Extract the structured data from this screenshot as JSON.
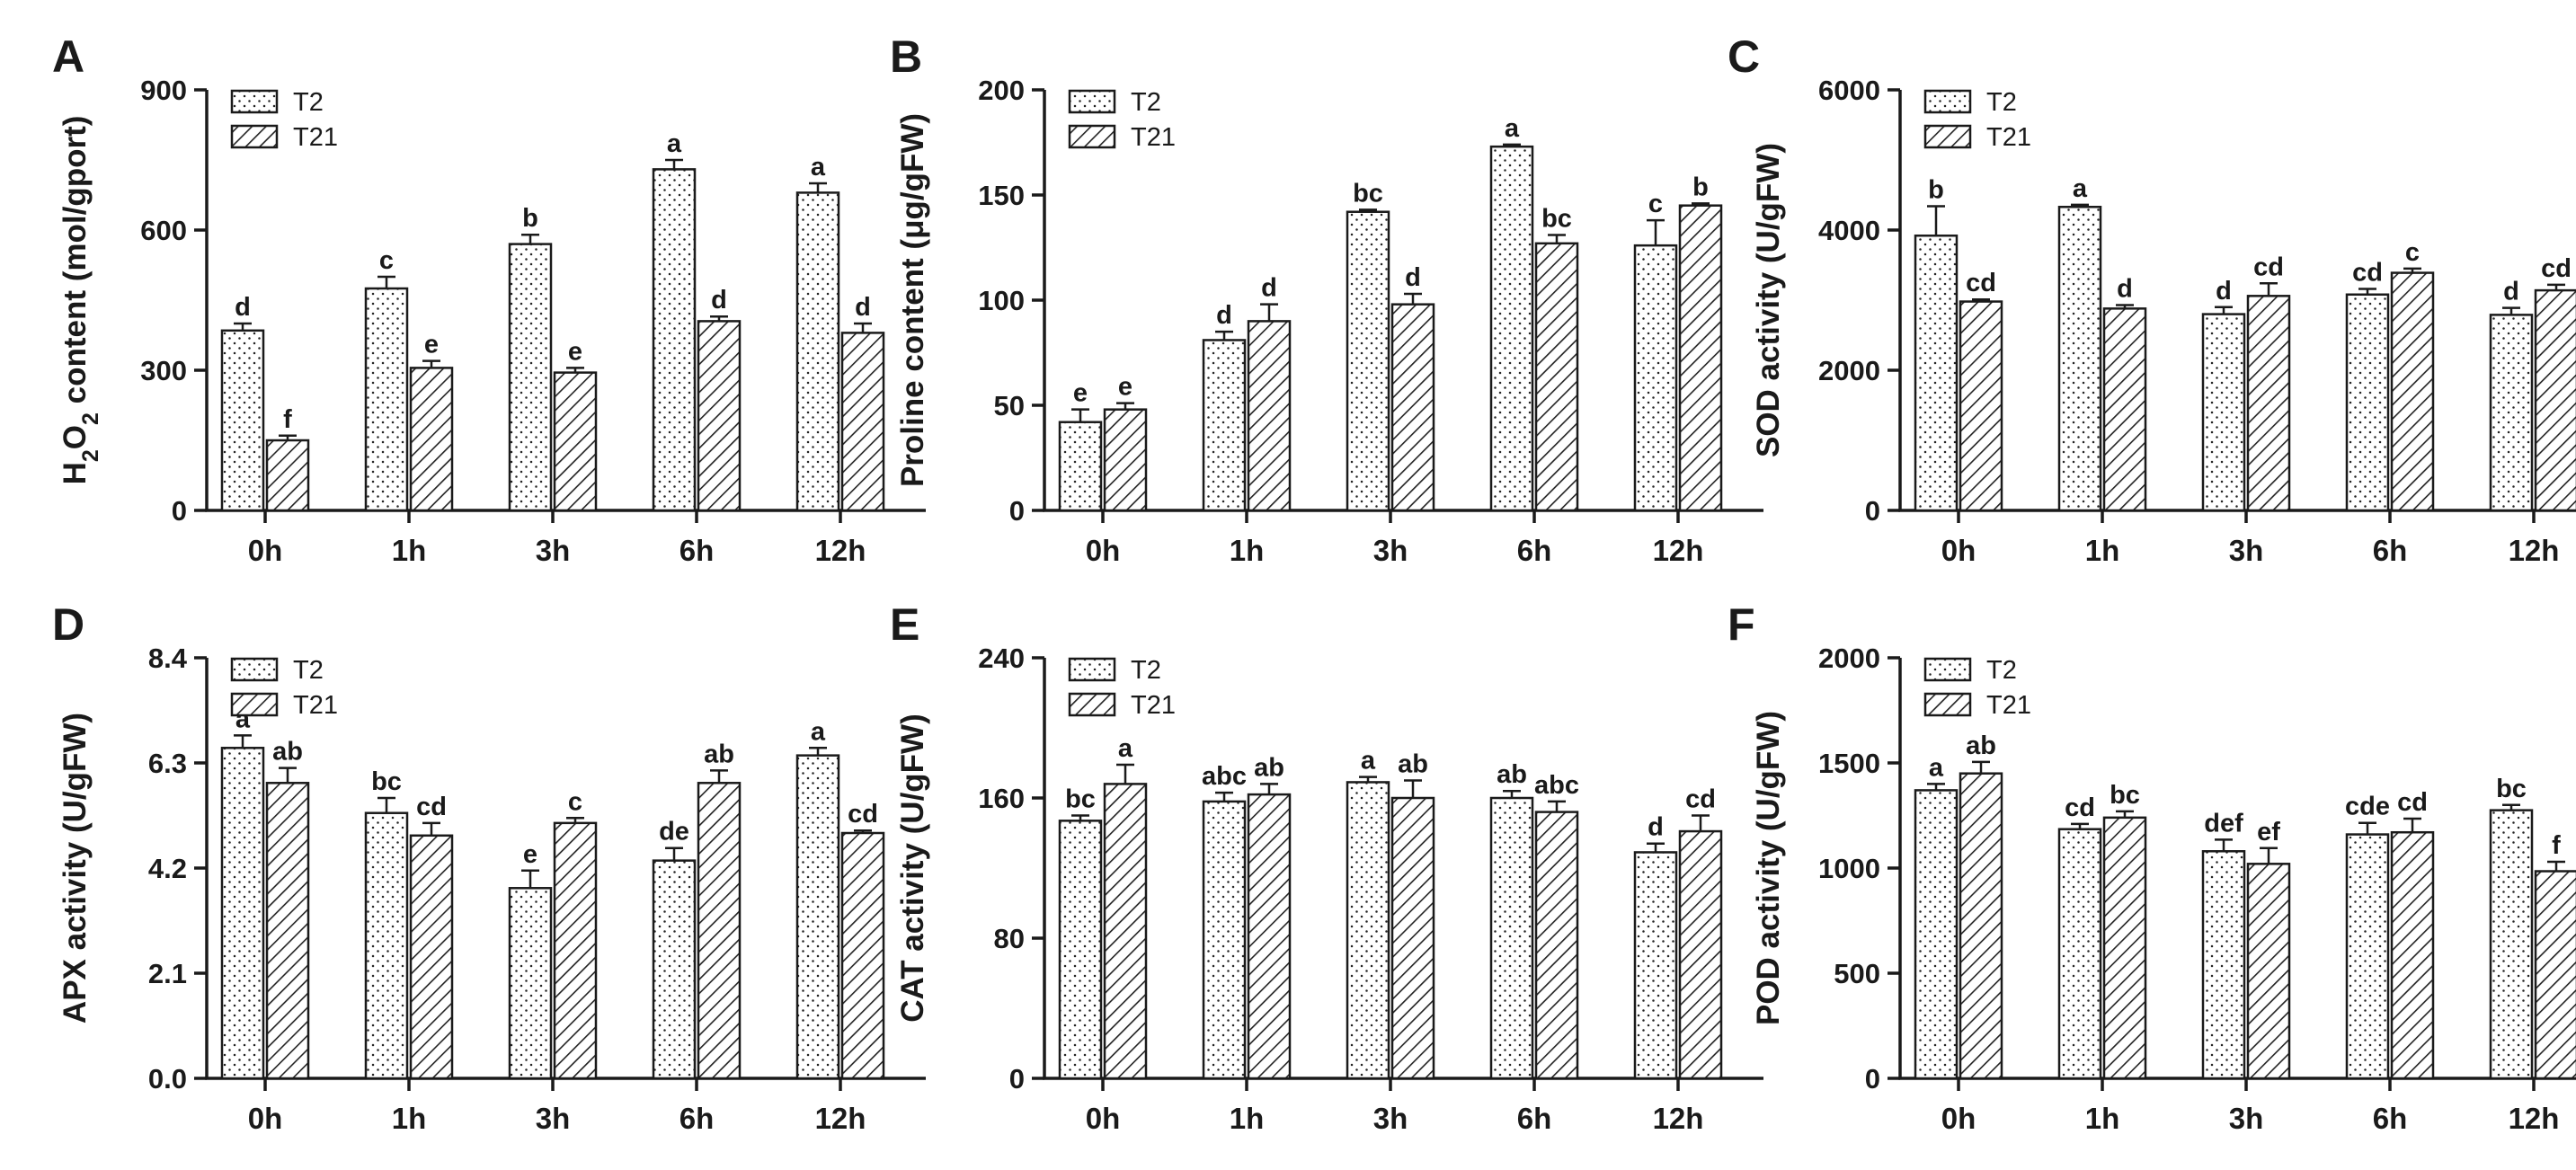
{
  "figure": {
    "legend_labels": [
      "T2",
      "T21"
    ],
    "colors": {
      "axis": "#1a1a1a",
      "bar_fill": "#ffffff",
      "pattern": "#222222"
    }
  },
  "chart_data": [
    {
      "type": "bar",
      "panel": "A",
      "ylabel": "H2O2 content (mol/gport)",
      "ylabel_parts": {
        "main": "H",
        "sub1": "2",
        "mid": "O",
        "sub2": "2",
        "rest": " content (mol/gport)"
      },
      "categories": [
        "0h",
        "1h",
        "3h",
        "6h",
        "12h"
      ],
      "ylim": [
        0,
        900
      ],
      "yticks": [
        0,
        300,
        600,
        900
      ],
      "ytick_labels": [
        "0",
        "300",
        "600",
        "900"
      ],
      "legend": [
        "T2",
        "T21"
      ],
      "legend_position": "top-left",
      "series": [
        {
          "name": "T2",
          "pattern": "dots",
          "values": [
            385,
            475,
            570,
            730,
            680
          ],
          "errors": [
            15,
            25,
            20,
            20,
            20
          ],
          "sig": [
            "d",
            "c",
            "b",
            "a",
            "a"
          ]
        },
        {
          "name": "T21",
          "pattern": "hatch",
          "values": [
            150,
            305,
            295,
            405,
            380
          ],
          "errors": [
            10,
            15,
            10,
            10,
            20
          ],
          "sig": [
            "f",
            "e",
            "e",
            "d",
            "d"
          ]
        }
      ]
    },
    {
      "type": "bar",
      "panel": "B",
      "ylabel": "Proline content (μg/gFW)",
      "categories": [
        "0h",
        "1h",
        "3h",
        "6h",
        "12h"
      ],
      "ylim": [
        0,
        200
      ],
      "yticks": [
        0,
        50,
        100,
        150,
        200
      ],
      "ytick_labels": [
        "0",
        "50",
        "100",
        "150",
        "200"
      ],
      "legend": [
        "T2",
        "T21"
      ],
      "legend_position": "top-left",
      "series": [
        {
          "name": "T2",
          "pattern": "dots",
          "values": [
            42,
            81,
            142,
            173,
            126
          ],
          "errors": [
            6,
            4,
            1,
            1,
            12
          ],
          "sig": [
            "e",
            "d",
            "bc",
            "a",
            "c"
          ]
        },
        {
          "name": "T21",
          "pattern": "hatch",
          "values": [
            48,
            90,
            98,
            127,
            145
          ],
          "errors": [
            3,
            8,
            5,
            4,
            1
          ],
          "sig": [
            "e",
            "d",
            "d",
            "bc",
            "b"
          ]
        }
      ]
    },
    {
      "type": "bar",
      "panel": "C",
      "ylabel": "SOD activity (U/gFW)",
      "categories": [
        "0h",
        "1h",
        "3h",
        "6h",
        "12h"
      ],
      "ylim": [
        0,
        6000
      ],
      "yticks": [
        0,
        2000,
        4000,
        6000
      ],
      "ytick_labels": [
        "0",
        "2000",
        "4000",
        "6000"
      ],
      "legend": [
        "T2",
        "T21"
      ],
      "legend_position": "top-left",
      "series": [
        {
          "name": "T2",
          "pattern": "dots",
          "values": [
            3920,
            4330,
            2800,
            3080,
            2790
          ],
          "errors": [
            420,
            30,
            100,
            80,
            100
          ],
          "sig": [
            "b",
            "a",
            "d",
            "cd",
            "d"
          ]
        },
        {
          "name": "T21",
          "pattern": "hatch",
          "values": [
            2980,
            2880,
            3060,
            3390,
            3140
          ],
          "errors": [
            30,
            50,
            180,
            60,
            80
          ],
          "sig": [
            "cd",
            "d",
            "cd",
            "c",
            "cd"
          ]
        }
      ]
    },
    {
      "type": "bar",
      "panel": "D",
      "ylabel": "APX activity (U/gFW)",
      "categories": [
        "0h",
        "1h",
        "3h",
        "6h",
        "12h"
      ],
      "ylim": [
        0,
        8.4
      ],
      "yticks": [
        0,
        2.1,
        4.2,
        6.3,
        8.4
      ],
      "ytick_labels": [
        "0.0",
        "2.1",
        "4.2",
        "6.3",
        "8.4"
      ],
      "legend": [
        "T2",
        "T21"
      ],
      "legend_position": "top-left",
      "series": [
        {
          "name": "T2",
          "pattern": "dots",
          "values": [
            6.6,
            5.3,
            3.8,
            4.35,
            6.45
          ],
          "errors": [
            0.25,
            0.3,
            0.35,
            0.25,
            0.15
          ],
          "sig": [
            "a",
            "bc",
            "e",
            "de",
            "a"
          ]
        },
        {
          "name": "T21",
          "pattern": "hatch",
          "values": [
            5.9,
            4.85,
            5.1,
            5.9,
            4.9
          ],
          "errors": [
            0.3,
            0.25,
            0.1,
            0.25,
            0.05
          ],
          "sig": [
            "ab",
            "cd",
            "c",
            "ab",
            "cd"
          ]
        }
      ]
    },
    {
      "type": "bar",
      "panel": "E",
      "ylabel": "CAT activity (U/gFW)",
      "categories": [
        "0h",
        "1h",
        "3h",
        "6h",
        "12h"
      ],
      "ylim": [
        0,
        240
      ],
      "yticks": [
        0,
        80,
        160,
        240
      ],
      "ytick_labels": [
        "0",
        "80",
        "160",
        "240"
      ],
      "legend": [
        "T2",
        "T21"
      ],
      "legend_position": "top-left",
      "series": [
        {
          "name": "T2",
          "pattern": "dots",
          "values": [
            147,
            158,
            169,
            160,
            129
          ],
          "errors": [
            3,
            5,
            3,
            4,
            5
          ],
          "sig": [
            "bc",
            "abc",
            "a",
            "ab",
            "d"
          ]
        },
        {
          "name": "T21",
          "pattern": "hatch",
          "values": [
            168,
            162,
            160,
            152,
            141
          ],
          "errors": [
            11,
            6,
            10,
            6,
            9
          ],
          "sig": [
            "a",
            "ab",
            "ab",
            "abc",
            "cd"
          ]
        }
      ]
    },
    {
      "type": "bar",
      "panel": "F",
      "ylabel": "POD activity (U/gFW)",
      "categories": [
        "0h",
        "1h",
        "3h",
        "6h",
        "12h"
      ],
      "ylim": [
        0,
        2000
      ],
      "yticks": [
        0,
        500,
        1000,
        1500,
        2000
      ],
      "ytick_labels": [
        "0",
        "500",
        "1000",
        "1500",
        "2000"
      ],
      "legend": [
        "T2",
        "T21"
      ],
      "legend_position": "top-left",
      "series": [
        {
          "name": "T2",
          "pattern": "dots",
          "values": [
            1370,
            1185,
            1080,
            1160,
            1275
          ],
          "errors": [
            30,
            25,
            55,
            55,
            25
          ],
          "sig": [
            "a",
            "cd",
            "def",
            "cde",
            "bc"
          ]
        },
        {
          "name": "T21",
          "pattern": "hatch",
          "values": [
            1450,
            1240,
            1020,
            1170,
            985
          ],
          "errors": [
            55,
            30,
            75,
            65,
            45
          ],
          "sig": [
            "ab",
            "bc",
            "ef",
            "cd",
            "f"
          ]
        }
      ]
    }
  ]
}
